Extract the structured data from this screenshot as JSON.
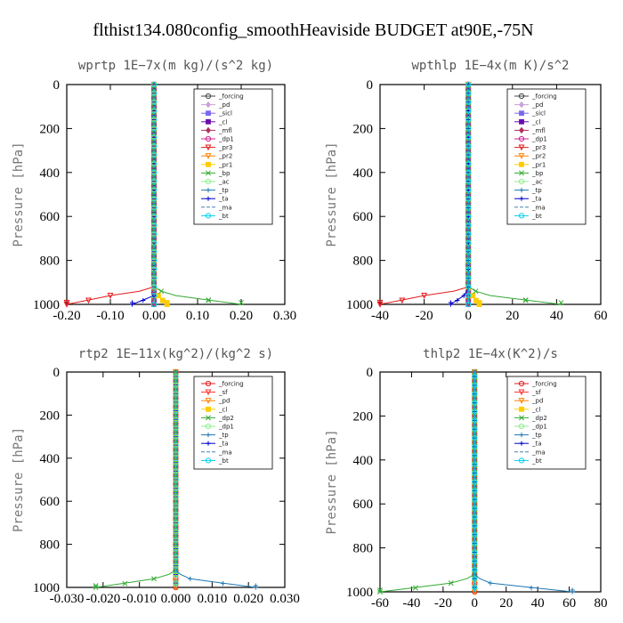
{
  "figure_title": "flthist134.080config_smoothHeaviside  BUDGET at90E,-75N",
  "chart_data": [
    {
      "type": "line",
      "title": "wprtp   1E−7x(m kg)/(s^2 kg)",
      "ylabel": "Pressure [hPa]",
      "xlim": [
        -0.2,
        0.3
      ],
      "ylim": [
        1000,
        0
      ],
      "xticks": [
        "-0.20",
        "-0.10",
        "0.00",
        "0.10",
        "0.20",
        "0.30"
      ],
      "xtick_values": [
        -0.2,
        -0.1,
        0,
        0.1,
        0.2,
        0.3
      ],
      "yticks": [
        "0",
        "200",
        "400",
        "600",
        "800",
        "1000"
      ],
      "ytick_values": [
        0,
        200,
        400,
        600,
        800,
        1000
      ],
      "legend_position": "top-right",
      "series": [
        {
          "name": "_forcing",
          "color": "#444444",
          "marker": "circle",
          "surface": 0.0,
          "near": 0.0
        },
        {
          "name": "_pd",
          "color": "#c8a2d8",
          "marker": "diamond",
          "surface": 0.0,
          "near": 0.0
        },
        {
          "name": "_sicl",
          "color": "#7b68ee",
          "marker": "square",
          "surface": 0.0,
          "near": 0.0
        },
        {
          "name": "_cl",
          "color": "#6a0dad",
          "marker": "square",
          "surface": 0.0,
          "near": 0.0
        },
        {
          "name": "_mfl",
          "color": "#b03060",
          "marker": "diamond",
          "surface": 0.0,
          "near": 0.0
        },
        {
          "name": "_dp1",
          "color": "#d02090",
          "marker": "circle",
          "surface": 0.0,
          "near": 0.0
        },
        {
          "name": "_pr3",
          "color": "#e41a1c",
          "marker": "triangle",
          "surface": -0.2,
          "near": -0.1
        },
        {
          "name": "_pr2",
          "color": "#ff7f00",
          "marker": "triangle",
          "surface": 0.0,
          "near": 0.0
        },
        {
          "name": "_pr1",
          "color": "#ffcc00",
          "marker": "square",
          "surface": 0.03,
          "near": 0.01
        },
        {
          "name": "_bp",
          "color": "#33aa33",
          "marker": "x",
          "surface": 0.2,
          "near": 0.05
        },
        {
          "name": "_ac",
          "color": "#90ee90",
          "marker": "circle",
          "surface": 0.0,
          "near": 0.0
        },
        {
          "name": "_tp",
          "color": "#1f77b4",
          "marker": "plus",
          "surface": 0.0,
          "near": 0.0
        },
        {
          "name": "_ta",
          "color": "#0000cd",
          "marker": "plus",
          "surface": -0.05,
          "near": 0.0
        },
        {
          "name": "_ma",
          "color": "#4682b4",
          "marker": "none",
          "surface": 0.0,
          "near": 0.0
        },
        {
          "name": "_bt",
          "color": "#00d0f0",
          "marker": "circle",
          "surface": 0.0,
          "near": 0.0
        }
      ]
    },
    {
      "type": "line",
      "title": "wpthlp   1E−4x(m K)/s^2",
      "ylabel": "Pressure [hPa]",
      "xlim": [
        -40,
        60
      ],
      "ylim": [
        1000,
        0
      ],
      "xticks": [
        "-40",
        "-20",
        "0",
        "20",
        "40",
        "60"
      ],
      "xtick_values": [
        -40,
        -20,
        0,
        20,
        40,
        60
      ],
      "yticks": [
        "0",
        "200",
        "400",
        "600",
        "800",
        "1000"
      ],
      "ytick_values": [
        0,
        200,
        400,
        600,
        800,
        1000
      ],
      "legend_position": "top-right",
      "series": [
        {
          "name": "_forcing",
          "color": "#444444",
          "marker": "circle",
          "surface": 0,
          "near": 0
        },
        {
          "name": "_pd",
          "color": "#c8a2d8",
          "marker": "diamond",
          "surface": 0,
          "near": 0
        },
        {
          "name": "_sicl",
          "color": "#7b68ee",
          "marker": "square",
          "surface": 0,
          "near": 0
        },
        {
          "name": "_cl",
          "color": "#6a0dad",
          "marker": "square",
          "surface": 0,
          "near": 0
        },
        {
          "name": "_mfl",
          "color": "#b03060",
          "marker": "diamond",
          "surface": 0,
          "near": 0
        },
        {
          "name": "_dp1",
          "color": "#d02090",
          "marker": "circle",
          "surface": 0,
          "near": 0
        },
        {
          "name": "_pr3",
          "color": "#e41a1c",
          "marker": "triangle",
          "surface": -40,
          "near": -20
        },
        {
          "name": "_pr2",
          "color": "#ff7f00",
          "marker": "triangle",
          "surface": 0,
          "near": 0
        },
        {
          "name": "_pr1",
          "color": "#ffcc00",
          "marker": "square",
          "surface": 5,
          "near": 2
        },
        {
          "name": "_bp",
          "color": "#33aa33",
          "marker": "x",
          "surface": 42,
          "near": 10
        },
        {
          "name": "_ac",
          "color": "#90ee90",
          "marker": "circle",
          "surface": 0,
          "near": 0
        },
        {
          "name": "_tp",
          "color": "#1f77b4",
          "marker": "plus",
          "surface": 0,
          "near": 0
        },
        {
          "name": "_ta",
          "color": "#0000cd",
          "marker": "plus",
          "surface": -8,
          "near": -2
        },
        {
          "name": "_ma",
          "color": "#4682b4",
          "marker": "none",
          "surface": 0,
          "near": 0
        },
        {
          "name": "_bt",
          "color": "#00d0f0",
          "marker": "circle",
          "surface": 0,
          "near": 0
        }
      ]
    },
    {
      "type": "line",
      "title": "rtp2   1E−11x(kg^2)/(kg^2 s)",
      "ylabel": "Pressure [hPa]",
      "xlim": [
        -0.03,
        0.03
      ],
      "ylim": [
        1000,
        0
      ],
      "xticks": [
        "-0.030",
        "-0.020",
        "-0.010",
        "0.000",
        "0.010",
        "0.020",
        "0.030"
      ],
      "xtick_values": [
        -0.03,
        -0.02,
        -0.01,
        0,
        0.01,
        0.02,
        0.03
      ],
      "yticks": [
        "0",
        "200",
        "400",
        "600",
        "800",
        "1000"
      ],
      "ytick_values": [
        0,
        200,
        400,
        600,
        800,
        1000
      ],
      "legend_position": "top-right",
      "series": [
        {
          "name": "_forcing",
          "color": "#e41a1c",
          "marker": "circle",
          "surface": 0,
          "near": 0
        },
        {
          "name": "_sf",
          "color": "#ff3030",
          "marker": "triangle",
          "surface": 0,
          "near": 0
        },
        {
          "name": "_pd",
          "color": "#ff7f00",
          "marker": "triangle",
          "surface": 0,
          "near": 0
        },
        {
          "name": "_cl",
          "color": "#ffcc00",
          "marker": "square",
          "surface": 0,
          "near": 0
        },
        {
          "name": "_dp2",
          "color": "#33aa33",
          "marker": "x",
          "surface": -0.022,
          "near": -0.006
        },
        {
          "name": "_dp1",
          "color": "#90ee90",
          "marker": "circle",
          "surface": 0,
          "near": 0
        },
        {
          "name": "_tp",
          "color": "#1f77b4",
          "marker": "plus",
          "surface": 0.022,
          "near": 0.004
        },
        {
          "name": "_ta",
          "color": "#0000cd",
          "marker": "plus",
          "surface": 0,
          "near": 0
        },
        {
          "name": "_ma",
          "color": "#4682b4",
          "marker": "none",
          "surface": 0,
          "near": 0
        },
        {
          "name": "_bt",
          "color": "#00d0f0",
          "marker": "circle",
          "surface": 0,
          "near": 0
        }
      ]
    },
    {
      "type": "line",
      "title": "thlp2   1E−4x(K^2)/s",
      "ylabel": "Pressure [hPa]",
      "xlim": [
        -60,
        80
      ],
      "ylim": [
        1000,
        0
      ],
      "xticks": [
        "-60",
        "-40",
        "-20",
        "0",
        "20",
        "40",
        "60",
        "80"
      ],
      "xtick_values": [
        -60,
        -40,
        -20,
        0,
        20,
        40,
        60,
        80
      ],
      "yticks": [
        "0",
        "200",
        "400",
        "600",
        "800",
        "1000"
      ],
      "ytick_values": [
        0,
        200,
        400,
        600,
        800,
        1000
      ],
      "legend_position": "top-right",
      "series": [
        {
          "name": "_forcing",
          "color": "#e41a1c",
          "marker": "circle",
          "surface": 0,
          "near": 0
        },
        {
          "name": "_sf",
          "color": "#ff3030",
          "marker": "triangle",
          "surface": 0,
          "near": 0
        },
        {
          "name": "_pd",
          "color": "#ff7f00",
          "marker": "triangle",
          "surface": 0,
          "near": 0
        },
        {
          "name": "_cl",
          "color": "#ffcc00",
          "marker": "square",
          "surface": 0,
          "near": 0
        },
        {
          "name": "_dp2",
          "color": "#33aa33",
          "marker": "x",
          "surface": -60,
          "near": -15
        },
        {
          "name": "_dp1",
          "color": "#90ee90",
          "marker": "circle",
          "surface": 0,
          "near": 0
        },
        {
          "name": "_tp",
          "color": "#1f77b4",
          "marker": "plus",
          "surface": 62,
          "near": 10
        },
        {
          "name": "_ta",
          "color": "#0000cd",
          "marker": "plus",
          "surface": 0,
          "near": 0
        },
        {
          "name": "_ma",
          "color": "#4682b4",
          "marker": "none",
          "surface": 0,
          "near": 0
        },
        {
          "name": "_bt",
          "color": "#00d0f0",
          "marker": "circle",
          "surface": 0,
          "near": 0
        }
      ]
    }
  ]
}
